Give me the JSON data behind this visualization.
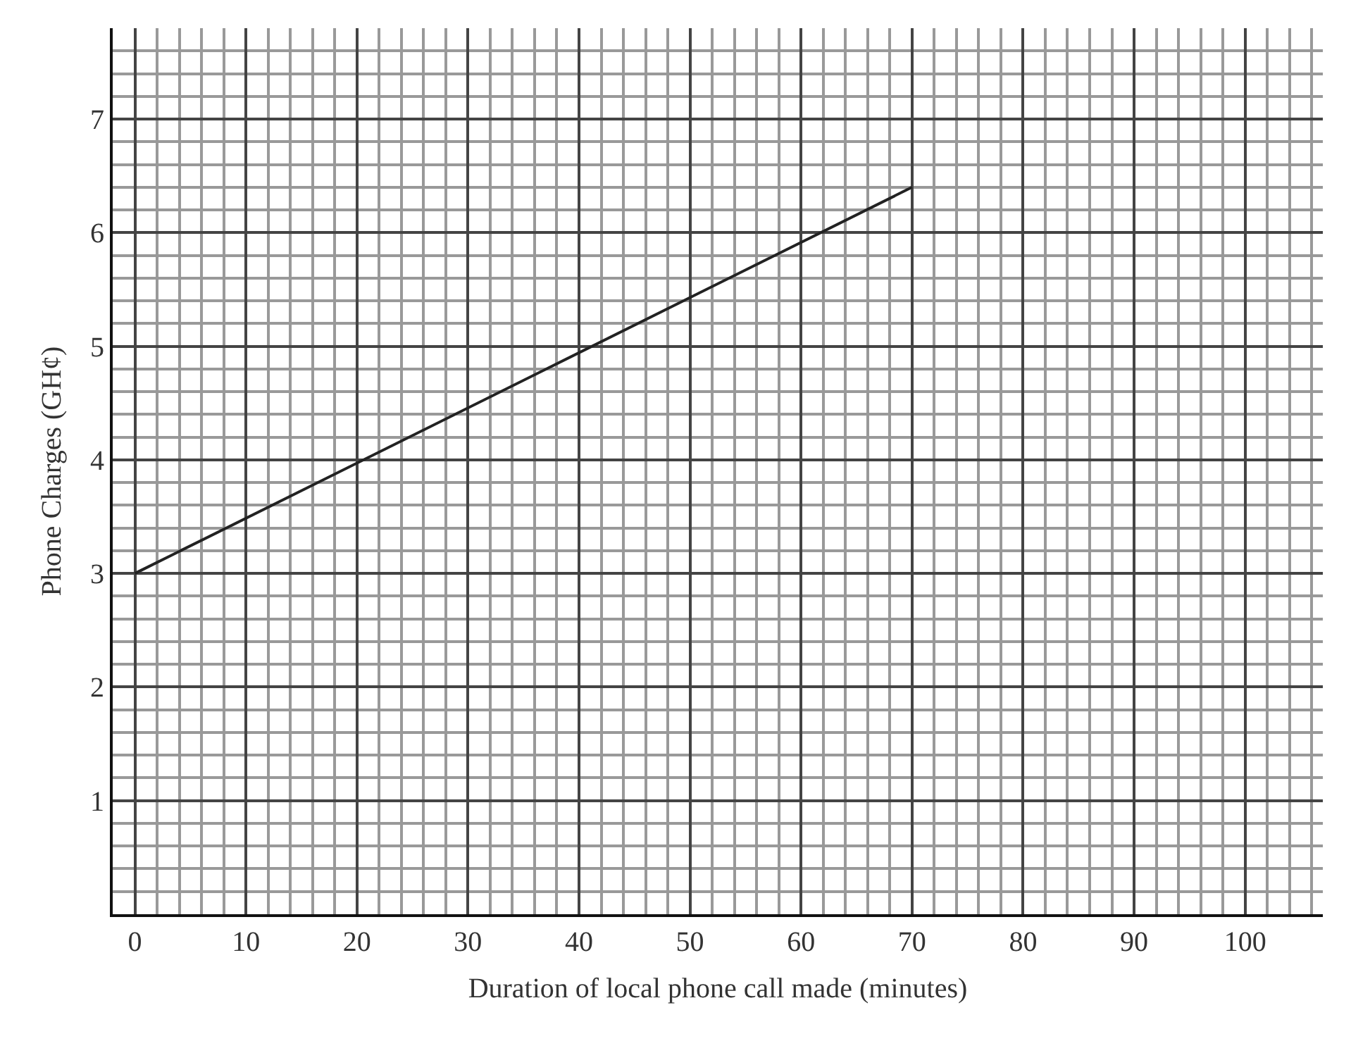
{
  "chart_data": {
    "type": "line",
    "xlabel": "Duration of local phone call made (minutes)",
    "ylabel": "Phone Charges (GH¢)",
    "x": [
      0,
      70
    ],
    "series": [
      {
        "color": "#222222",
        "values": [
          3,
          6.4
        ]
      }
    ],
    "xlim": [
      -2,
      107
    ],
    "xticks": [
      0,
      10,
      20,
      30,
      40,
      50,
      60,
      70,
      80,
      90,
      100
    ],
    "ylim": [
      0,
      7.8
    ],
    "yticks": [
      1,
      2,
      3,
      4,
      5,
      6,
      7
    ],
    "grid": true,
    "marker": "none",
    "line_style": "solid"
  }
}
